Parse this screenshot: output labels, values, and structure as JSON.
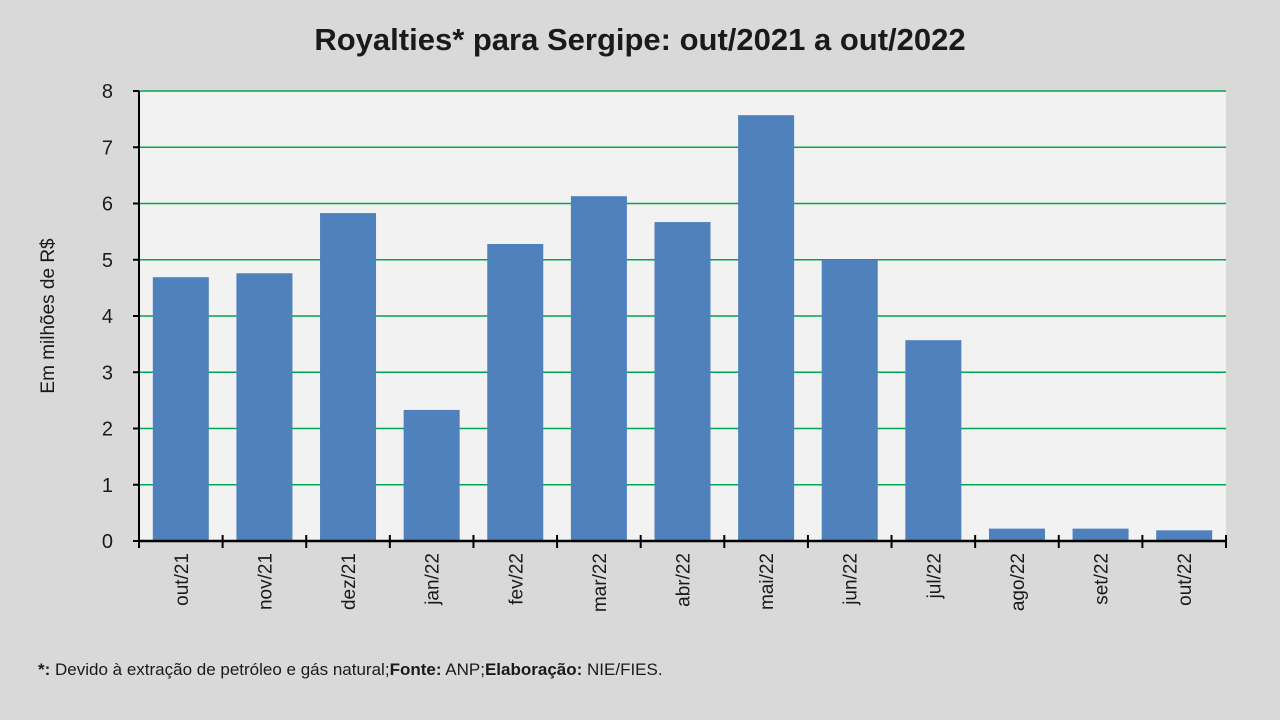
{
  "chart_data": {
    "type": "bar",
    "title": "Royalties* para Sergipe: out/2021 a out/2022",
    "xlabel": "",
    "ylabel": "Em milhões de R$",
    "ylim": [
      0,
      8
    ],
    "yticks": [
      "0",
      "1",
      "2",
      "3",
      "4",
      "5",
      "6",
      "7",
      "8"
    ],
    "grid": true,
    "categories": [
      "out/21",
      "nov/21",
      "dez/21",
      "jan/22",
      "fev/22",
      "mar/22",
      "abr/22",
      "mai/22",
      "jun/22",
      "jul/22",
      "ago/22",
      "set/22",
      "out/22"
    ],
    "values": [
      4.69,
      4.76,
      5.83,
      2.33,
      5.28,
      6.13,
      5.67,
      7.57,
      5.0,
      3.57,
      0.22,
      0.22,
      0.19
    ],
    "colors": {
      "bar": "#4f81bd",
      "grid": "#00a651",
      "plot_bg": "#f2f2f2",
      "page_bg": "#d9d9d9"
    }
  },
  "footer": {
    "note_marker": "*:",
    "note_text": " Devido à extração de petróleo e gás natural;",
    "source_label": "Fonte:",
    "source_text": " ANP;",
    "elab_label": "Elaboração:",
    "elab_text": " NIE/FIES."
  }
}
